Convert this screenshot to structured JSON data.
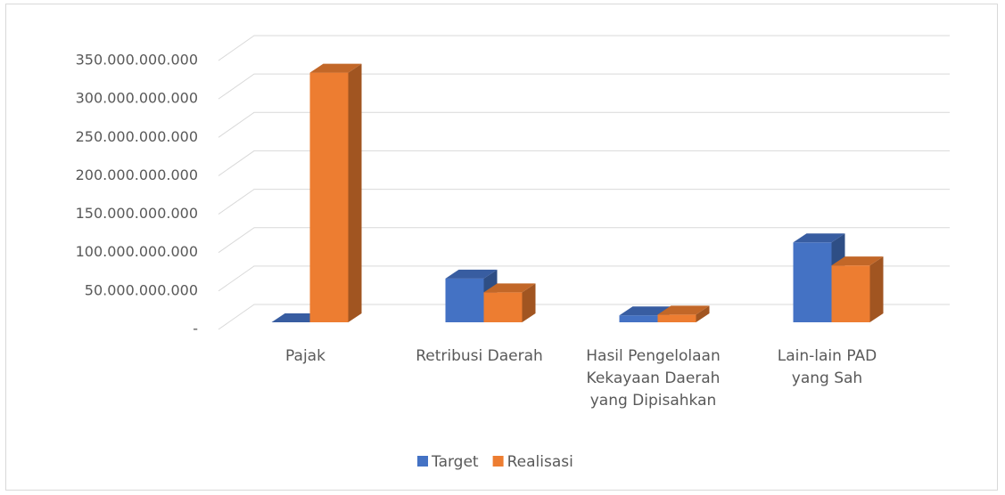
{
  "chart_data": {
    "type": "bar3d",
    "categories": [
      "Pajak",
      "Retribusi Daerah",
      "Hasil Pengelolaan\nKekayaan Daerah\nyang Dipisahkan",
      "Lain-lain PAD\nyang Sah"
    ],
    "series": [
      {
        "name": "Target",
        "color": "#4472c4",
        "values": [
          0,
          57000000000,
          9000000000,
          104000000000
        ]
      },
      {
        "name": "Realisasi",
        "color": "#ed7d31",
        "values": [
          325000000000,
          39000000000,
          10000000000,
          74000000000
        ]
      }
    ],
    "ylim": [
      0,
      350000000000
    ],
    "yticks": [
      {
        "value": 0,
        "label": "-"
      },
      {
        "value": 50000000000,
        "label": "50.000.000.000"
      },
      {
        "value": 100000000000,
        "label": "100.000.000.000"
      },
      {
        "value": 150000000000,
        "label": "150.000.000.000"
      },
      {
        "value": 200000000000,
        "label": "200.000.000.000"
      },
      {
        "value": 250000000000,
        "label": "250.000.000.000"
      },
      {
        "value": 300000000000,
        "label": "300.000.000.000"
      },
      {
        "value": 350000000000,
        "label": "350.000.000.000"
      }
    ],
    "grid": true,
    "legend": "bottom"
  }
}
